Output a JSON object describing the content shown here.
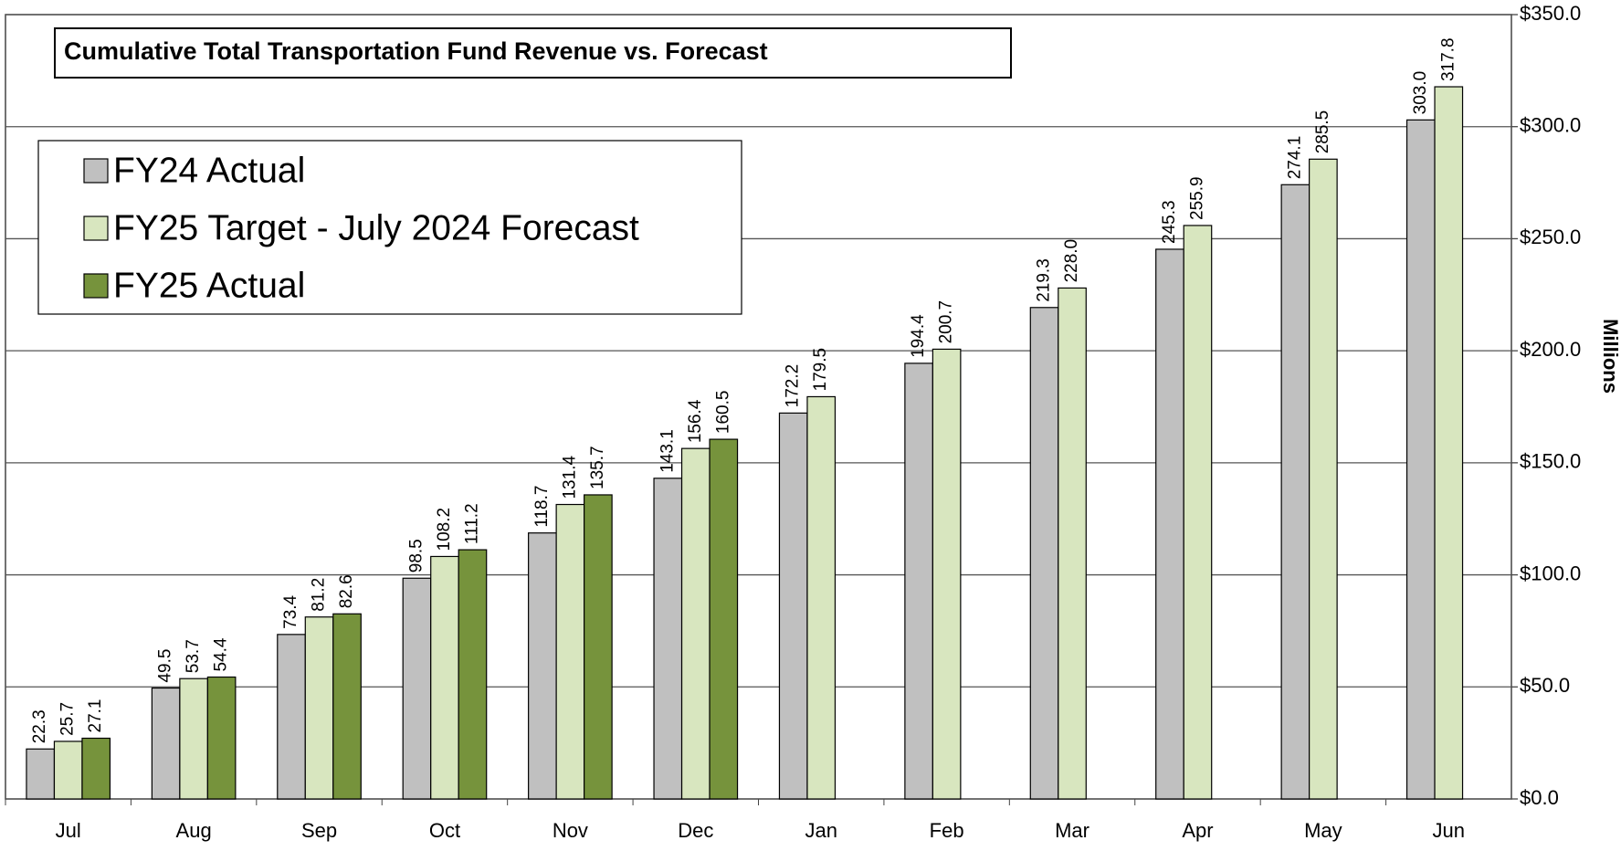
{
  "chart_data": {
    "type": "bar",
    "title": "Cumulative Total Transportation Fund Revenue vs. Forecast",
    "y_axis_label": "Millions",
    "categories": [
      "Jul",
      "Aug",
      "Sep",
      "Oct",
      "Nov",
      "Dec",
      "Jan",
      "Feb",
      "Mar",
      "Apr",
      "May",
      "Jun"
    ],
    "series": [
      {
        "name": "FY24 Actual",
        "color": "#c0c0c0",
        "values": [
          22.3,
          49.5,
          73.4,
          98.5,
          118.7,
          143.1,
          172.2,
          194.4,
          219.3,
          245.3,
          274.1,
          303.0
        ],
        "value_labels": [
          "22.3",
          "49.5",
          "73.4",
          "98.5",
          "118.7",
          "143.1",
          "172.2",
          "194.4",
          "219.3",
          "245.3",
          "274.1",
          "303.0"
        ]
      },
      {
        "name": "FY25 Target - July 2024 Forecast",
        "color": "#d8e6bf",
        "values": [
          25.7,
          53.7,
          81.2,
          108.2,
          131.4,
          156.4,
          179.5,
          200.7,
          228.0,
          255.9,
          285.5,
          317.8
        ],
        "value_labels": [
          "25.7",
          "53.7",
          "81.2",
          "108.2",
          "131.4",
          "156.4",
          "179.5",
          "200.7",
          "228.0",
          "255.9",
          "285.5",
          "317.8"
        ]
      },
      {
        "name": "FY25 Actual",
        "color": "#76933c",
        "values": [
          27.1,
          54.4,
          82.6,
          111.2,
          135.7,
          160.5,
          null,
          null,
          null,
          null,
          null,
          null
        ],
        "value_labels": [
          "27.1",
          "54.4",
          "82.6",
          "111.2",
          "135.7",
          "160.5",
          null,
          null,
          null,
          null,
          null,
          null
        ]
      }
    ],
    "ylim": [
      0,
      350
    ],
    "yticks": [
      {
        "value": 0,
        "label": "$0.0"
      },
      {
        "value": 50,
        "label": "$50.0"
      },
      {
        "value": 100,
        "label": "$100.0"
      },
      {
        "value": 150,
        "label": "$150.0"
      },
      {
        "value": 200,
        "label": "$200.0"
      },
      {
        "value": 250,
        "label": "$250.0"
      },
      {
        "value": 300,
        "label": "$300.0"
      },
      {
        "value": 350,
        "label": "$350.0"
      }
    ],
    "grid": true,
    "legend": "upper left"
  }
}
